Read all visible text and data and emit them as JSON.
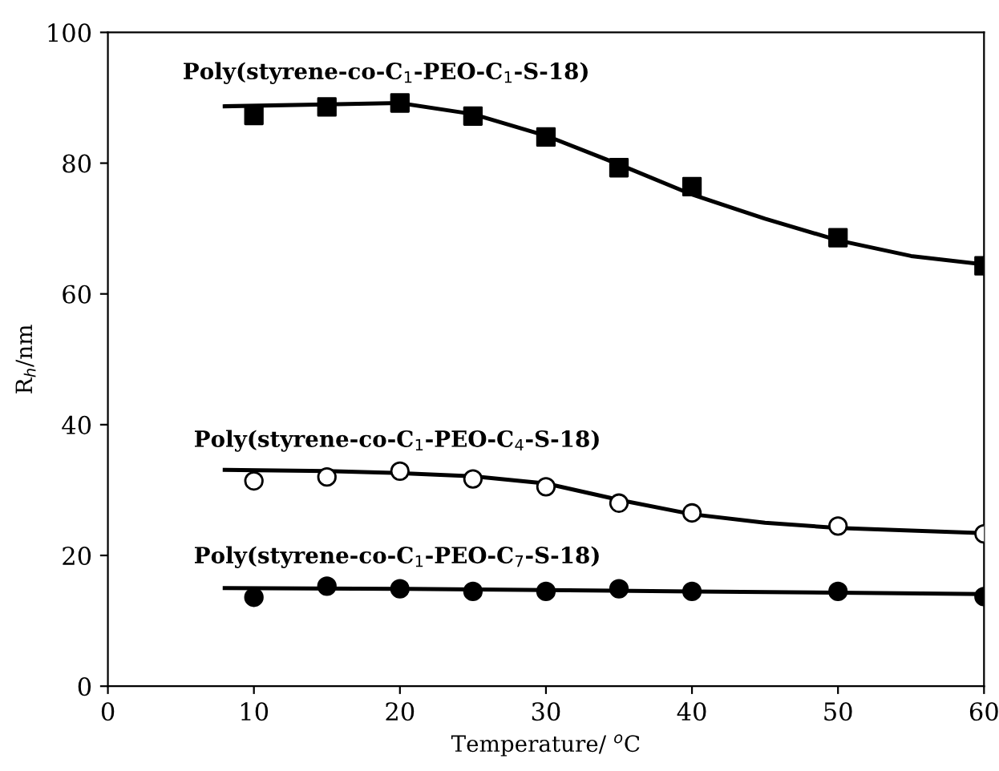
{
  "chart_data": {
    "type": "scatter",
    "xlabel": "Temperature/ $^{o}$C",
    "ylabel": "R$_{h}$/nm",
    "xlim": [
      0,
      60
    ],
    "xticks": [
      0,
      10,
      20,
      30,
      40,
      50,
      60
    ],
    "ylim": [
      0,
      100
    ],
    "yticks": [
      0,
      20,
      40,
      60,
      80,
      100
    ],
    "grid": false,
    "legend": false,
    "series": [
      {
        "name": "Poly(styrene-co-C$_{1}$-PEO-C$_{1}$-S-18)",
        "marker": "square",
        "color": "#000000",
        "x": [
          10,
          15,
          20,
          25,
          30,
          35,
          40,
          50,
          60
        ],
        "values": [
          87.3,
          88.6,
          89.2,
          87.2,
          84.0,
          79.3,
          76.4,
          68.6,
          64.3
        ]
      },
      {
        "type": "line",
        "color": "#000000",
        "x": [
          8,
          15,
          20,
          25,
          30,
          35,
          40,
          45,
          50,
          55,
          60
        ],
        "values": [
          88.7,
          89.0,
          89.2,
          87.5,
          84.2,
          79.8,
          75.2,
          71.5,
          68.2,
          65.8,
          64.5
        ]
      },
      {
        "name": "Poly(styrene-co-C$_{1}$-PEO-C$_{4}$-S-18)",
        "marker": "circle",
        "color": "#ffffff",
        "x": [
          10,
          15,
          20,
          25,
          30,
          35,
          40,
          50,
          60
        ],
        "values": [
          31.4,
          32.0,
          32.9,
          31.7,
          30.5,
          28.0,
          26.5,
          24.5,
          23.3
        ]
      },
      {
        "type": "line",
        "color": "#000000",
        "x": [
          8,
          15,
          20,
          25,
          30,
          35,
          40,
          45,
          50,
          55,
          60
        ],
        "values": [
          33.1,
          32.9,
          32.6,
          32.1,
          31.0,
          28.5,
          26.3,
          25.0,
          24.2,
          23.8,
          23.4
        ]
      },
      {
        "name": "Poly(styrene-co-C$_{1}$-PEO-C$_{7}$-S-18)",
        "marker": "circle",
        "color": "#000000",
        "x": [
          10,
          15,
          20,
          25,
          30,
          35,
          40,
          50,
          60
        ],
        "values": [
          13.6,
          15.3,
          14.9,
          14.5,
          14.5,
          14.9,
          14.5,
          14.5,
          13.7
        ]
      },
      {
        "type": "line",
        "color": "#000000",
        "x": [
          8,
          20,
          30,
          40,
          50,
          60
        ],
        "values": [
          15.0,
          14.9,
          14.7,
          14.5,
          14.3,
          14.1
        ]
      }
    ]
  }
}
